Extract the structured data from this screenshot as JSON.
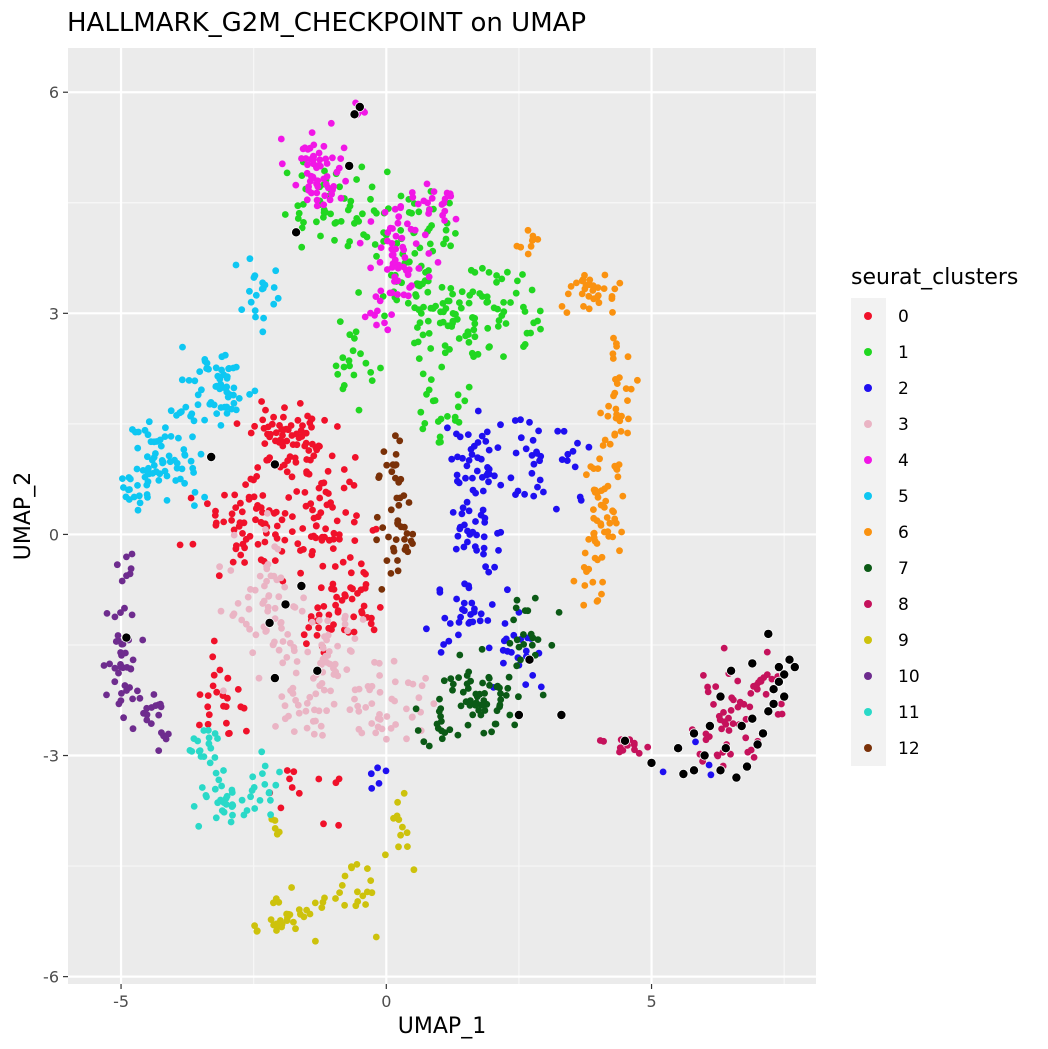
{
  "chart_data": {
    "type": "scatter",
    "title": "HALLMARK_G2M_CHECKPOINT on UMAP",
    "xlabel": "UMAP_1",
    "ylabel": "UMAP_2",
    "xlim": [
      -6,
      8.1
    ],
    "ylim": [
      -6.1,
      6.6
    ],
    "xticks": [
      -5,
      0,
      5
    ],
    "xtick_labels": [
      "-5",
      "0",
      "5"
    ],
    "yticks": [
      -6,
      -3,
      0,
      3,
      6
    ],
    "ytick_labels": [
      "-6",
      "-3",
      "0",
      "3",
      "6"
    ],
    "grid": true,
    "legend_title": "seurat_clusters",
    "legend_position": "right",
    "clusters": [
      {
        "name": "0",
        "color": "#f0112a"
      },
      {
        "name": "1",
        "color": "#21d721"
      },
      {
        "name": "2",
        "color": "#1f0ff0"
      },
      {
        "name": "3",
        "color": "#eab4c4"
      },
      {
        "name": "4",
        "color": "#f116e6"
      },
      {
        "name": "5",
        "color": "#0ec7f2"
      },
      {
        "name": "6",
        "color": "#fa9210"
      },
      {
        "name": "7",
        "color": "#0b5a16"
      },
      {
        "name": "8",
        "color": "#c5125c"
      },
      {
        "name": "9",
        "color": "#cdc20c"
      },
      {
        "name": "10",
        "color": "#6e2c8e"
      },
      {
        "name": "11",
        "color": "#2ad9c8"
      },
      {
        "name": "12",
        "color": "#7a3108"
      }
    ],
    "series": [
      {
        "name": "0",
        "regions": [
          [
            -1.8,
            1.3,
            0.7,
            0.4,
            70
          ],
          [
            -2.6,
            0.2,
            0.9,
            0.6,
            70
          ],
          [
            -1.0,
            0.1,
            0.7,
            0.7,
            60
          ],
          [
            -0.6,
            -0.9,
            0.5,
            0.5,
            30
          ],
          [
            -3.1,
            -2.2,
            0.5,
            0.6,
            25
          ],
          [
            -1.6,
            -3.5,
            0.6,
            0.4,
            12
          ],
          [
            -1.2,
            -1.2,
            0.5,
            0.4,
            20
          ]
        ]
      },
      {
        "name": "1",
        "regions": [
          [
            -1.2,
            4.4,
            0.9,
            0.6,
            50
          ],
          [
            0.5,
            3.8,
            0.8,
            0.8,
            70
          ],
          [
            1.2,
            2.8,
            0.8,
            0.7,
            60
          ],
          [
            2.2,
            3.1,
            0.6,
            0.6,
            40
          ],
          [
            -0.6,
            2.3,
            0.4,
            0.6,
            20
          ],
          [
            1.2,
            1.6,
            0.5,
            0.5,
            18
          ]
        ]
      },
      {
        "name": "2",
        "regions": [
          [
            1.7,
            0.5,
            0.5,
            1.1,
            70
          ],
          [
            2.8,
            1.0,
            0.5,
            0.6,
            25
          ],
          [
            1.5,
            -1.0,
            0.7,
            0.6,
            35
          ],
          [
            2.6,
            -1.6,
            0.6,
            0.5,
            20
          ],
          [
            3.5,
            1.0,
            0.3,
            0.6,
            10
          ],
          [
            5.7,
            -2.9,
            0.5,
            0.3,
            5
          ],
          [
            -0.2,
            -3.3,
            0.3,
            0.4,
            5
          ]
        ]
      },
      {
        "name": "3",
        "regions": [
          [
            -2.3,
            -1.0,
            0.8,
            0.8,
            60
          ],
          [
            -1.0,
            -1.7,
            0.8,
            0.6,
            55
          ],
          [
            0.1,
            -2.3,
            0.7,
            0.5,
            40
          ],
          [
            -1.6,
            -2.4,
            0.5,
            0.3,
            20
          ]
        ]
      },
      {
        "name": "4",
        "regions": [
          [
            -1.3,
            4.9,
            0.5,
            0.5,
            60
          ],
          [
            0.2,
            3.8,
            0.5,
            0.6,
            55
          ],
          [
            0.9,
            4.5,
            0.6,
            0.3,
            20
          ],
          [
            -0.5,
            5.7,
            0.2,
            0.1,
            6
          ],
          [
            -0.1,
            3.0,
            0.2,
            0.3,
            10
          ]
        ]
      },
      {
        "name": "5",
        "regions": [
          [
            -4.2,
            1.1,
            0.7,
            0.6,
            70
          ],
          [
            -3.2,
            2.0,
            0.6,
            0.5,
            55
          ],
          [
            -2.4,
            3.3,
            0.4,
            0.4,
            20
          ],
          [
            -4.8,
            0.5,
            0.2,
            0.3,
            10
          ]
        ]
      },
      {
        "name": "6",
        "regions": [
          [
            4.1,
            0.4,
            0.4,
            0.9,
            50
          ],
          [
            4.4,
            2.0,
            0.3,
            0.7,
            30
          ],
          [
            3.8,
            3.3,
            0.5,
            0.3,
            30
          ],
          [
            2.7,
            3.9,
            0.3,
            0.2,
            8
          ],
          [
            3.8,
            -0.6,
            0.3,
            0.4,
            12
          ]
        ]
      },
      {
        "name": "7",
        "regions": [
          [
            1.8,
            -2.2,
            0.8,
            0.5,
            60
          ],
          [
            2.7,
            -1.3,
            0.5,
            0.4,
            20
          ],
          [
            0.9,
            -2.6,
            0.3,
            0.3,
            12
          ]
        ]
      },
      {
        "name": "8",
        "regions": [
          [
            6.4,
            -2.4,
            0.6,
            0.7,
            45
          ],
          [
            4.5,
            -2.9,
            0.4,
            0.15,
            14
          ],
          [
            7.2,
            -2.0,
            0.3,
            0.5,
            15
          ]
        ]
      },
      {
        "name": "9",
        "regions": [
          [
            -1.8,
            -5.2,
            0.6,
            0.3,
            30
          ],
          [
            -0.7,
            -4.8,
            0.4,
            0.4,
            20
          ],
          [
            0.2,
            -4.0,
            0.4,
            0.5,
            12
          ],
          [
            -2.0,
            -3.9,
            0.2,
            0.3,
            5
          ]
        ]
      },
      {
        "name": "10",
        "regions": [
          [
            -5.0,
            -1.8,
            0.3,
            0.6,
            35
          ],
          [
            -4.4,
            -2.5,
            0.3,
            0.4,
            20
          ],
          [
            -4.9,
            -0.5,
            0.2,
            0.4,
            8
          ]
        ]
      },
      {
        "name": "11",
        "regions": [
          [
            -3.0,
            -3.6,
            0.5,
            0.3,
            35
          ],
          [
            -3.4,
            -2.9,
            0.3,
            0.3,
            18
          ],
          [
            -2.3,
            -3.3,
            0.3,
            0.3,
            10
          ]
        ]
      },
      {
        "name": "12",
        "regions": [
          [
            0.2,
            0.3,
            0.3,
            1.0,
            45
          ]
        ]
      }
    ],
    "highlight": {
      "color": "#000000",
      "points": [
        [
          -0.5,
          5.8
        ],
        [
          -0.6,
          5.7
        ],
        [
          -0.7,
          5.0
        ],
        [
          -1.7,
          4.1
        ],
        [
          -3.3,
          1.05
        ],
        [
          -2.1,
          0.95
        ],
        [
          -1.6,
          -0.7
        ],
        [
          -1.9,
          -0.95
        ],
        [
          -2.2,
          -1.2
        ],
        [
          -4.9,
          -1.4
        ],
        [
          -2.1,
          -1.95
        ],
        [
          -1.3,
          -1.85
        ],
        [
          2.7,
          -1.7
        ],
        [
          2.5,
          -2.45
        ],
        [
          3.3,
          -2.45
        ],
        [
          4.5,
          -2.8
        ],
        [
          5.0,
          -3.1
        ],
        [
          5.5,
          -2.9
        ],
        [
          5.6,
          -3.25
        ],
        [
          5.8,
          -3.2
        ],
        [
          6.0,
          -3.0
        ],
        [
          6.3,
          -3.2
        ],
        [
          6.6,
          -3.3
        ],
        [
          6.8,
          -3.15
        ],
        [
          6.4,
          -2.9
        ],
        [
          6.7,
          -2.6
        ],
        [
          6.9,
          -2.5
        ],
        [
          7.1,
          -2.7
        ],
        [
          7.0,
          -2.85
        ],
        [
          7.2,
          -2.4
        ],
        [
          7.3,
          -2.1
        ],
        [
          7.5,
          -1.9
        ],
        [
          7.6,
          -1.7
        ],
        [
          7.4,
          -1.8
        ],
        [
          7.2,
          -1.35
        ],
        [
          6.9,
          -1.75
        ],
        [
          6.5,
          -1.85
        ],
        [
          6.3,
          -2.2
        ],
        [
          6.1,
          -2.6
        ],
        [
          5.8,
          -2.7
        ],
        [
          7.5,
          -2.2
        ],
        [
          7.4,
          -2.0
        ],
        [
          7.7,
          -1.8
        ],
        [
          7.3,
          -2.3
        ]
      ]
    }
  }
}
